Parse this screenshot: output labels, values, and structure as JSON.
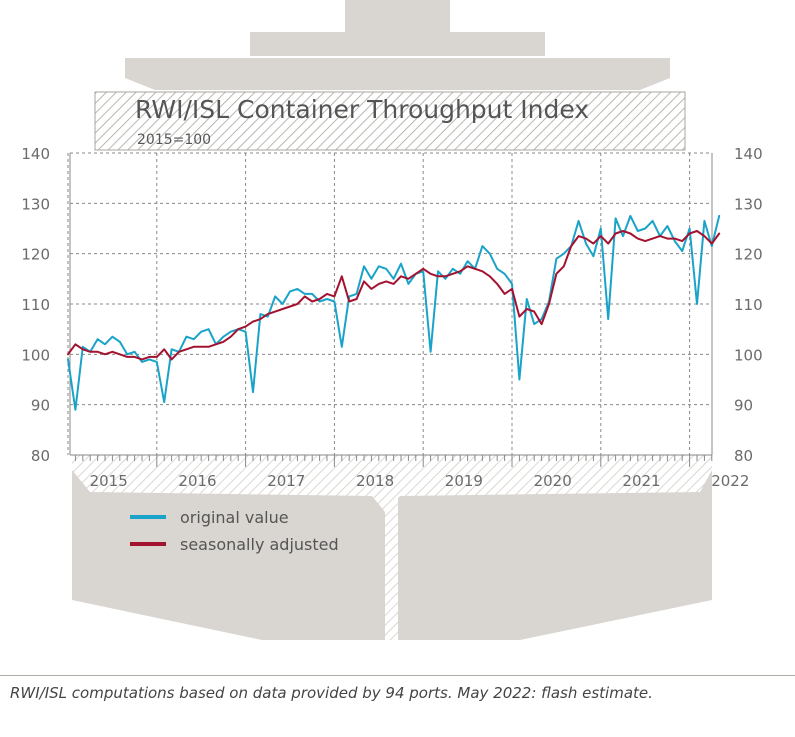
{
  "footnote": "RWI/ISL computations based on data provided by 94 ports. May 2022: flash estimate.",
  "colors": {
    "original": "#1aa3c9",
    "adjusted": "#a3122f",
    "ship": "#d9d6d1",
    "hatch": "#aaa59e",
    "grid": "#888888",
    "axis_text": "#6b6b6b",
    "title_text": "#555555"
  },
  "chart_data": {
    "type": "line",
    "title": "RWI/ISL Container Throughput Index",
    "subtitle": "2015=100",
    "xlabel": "",
    "ylabel": "",
    "ylim": [
      80,
      140
    ],
    "yticks": [
      80,
      90,
      100,
      110,
      120,
      130,
      140
    ],
    "year_labels": [
      "2015",
      "2016",
      "2017",
      "2018",
      "2019",
      "2020",
      "2021",
      "2022"
    ],
    "x_start": "2015-01",
    "x_end": "2022-05",
    "grid": true,
    "legend_position": "bottom-left",
    "series": [
      {
        "name": "original value",
        "values": [
          99.0,
          89.0,
          101.5,
          100.5,
          103.0,
          102.0,
          103.5,
          102.5,
          100.0,
          100.5,
          98.5,
          99.0,
          98.5,
          90.5,
          101.0,
          100.5,
          103.5,
          103.0,
          104.5,
          105.0,
          102.0,
          103.5,
          104.5,
          105.0,
          104.5,
          92.5,
          108.0,
          107.5,
          111.5,
          110.0,
          112.5,
          113.0,
          112.0,
          112.0,
          110.5,
          111.0,
          110.5,
          101.5,
          111.5,
          112.0,
          117.5,
          115.0,
          117.5,
          117.0,
          115.0,
          118.0,
          114.0,
          116.0,
          116.5,
          100.5,
          116.5,
          115.0,
          117.0,
          116.0,
          118.5,
          117.0,
          121.5,
          120.0,
          117.0,
          116.0,
          114.0,
          95.0,
          111.0,
          106.0,
          107.0,
          110.5,
          119.0,
          120.0,
          121.5,
          126.5,
          122.0,
          119.5,
          125.0,
          107.0,
          127.0,
          123.5,
          127.5,
          124.5,
          125.0,
          126.5,
          123.5,
          125.5,
          122.5,
          120.5,
          125.0,
          110.0,
          126.5,
          121.5,
          127.5
        ]
      },
      {
        "name": "seasonally adjusted",
        "values": [
          100.0,
          102.0,
          101.0,
          100.5,
          100.5,
          100.0,
          100.5,
          100.0,
          99.5,
          99.5,
          99.0,
          99.5,
          99.5,
          101.0,
          99.0,
          100.5,
          101.0,
          101.5,
          101.5,
          101.5,
          102.0,
          102.5,
          103.5,
          105.0,
          105.5,
          106.5,
          107.0,
          108.0,
          108.5,
          109.0,
          109.5,
          110.0,
          111.5,
          110.5,
          111.0,
          112.0,
          111.5,
          115.5,
          110.5,
          111.0,
          114.5,
          113.0,
          114.0,
          114.5,
          114.0,
          115.5,
          115.0,
          116.0,
          117.0,
          116.0,
          115.5,
          115.5,
          116.0,
          116.5,
          117.5,
          117.0,
          116.5,
          115.5,
          114.0,
          112.0,
          113.0,
          107.5,
          109.0,
          108.5,
          106.0,
          110.0,
          116.0,
          117.5,
          121.5,
          123.5,
          123.0,
          122.0,
          123.5,
          122.0,
          124.0,
          124.5,
          124.0,
          123.0,
          122.5,
          123.0,
          123.5,
          123.0,
          123.0,
          122.5,
          124.0,
          124.5,
          123.5,
          122.0,
          124.0
        ]
      }
    ]
  }
}
